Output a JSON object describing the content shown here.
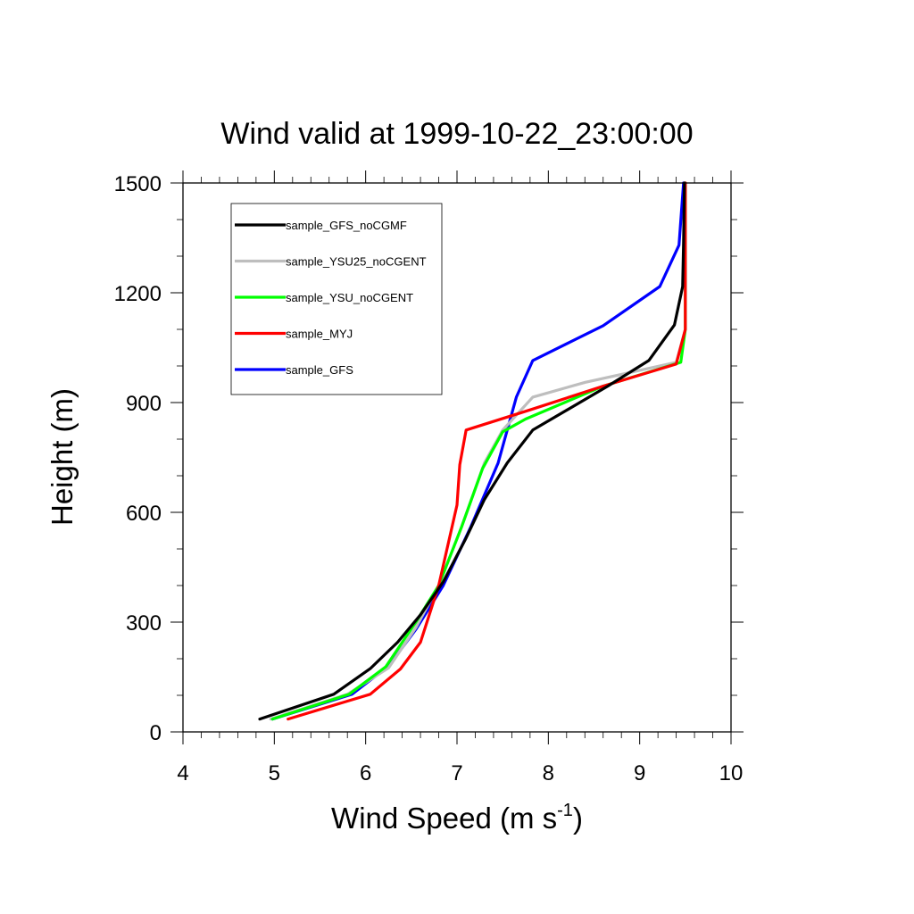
{
  "chart_data": {
    "type": "line",
    "title": "Wind valid at 1999-10-22_23:00:00",
    "xlabel": "Wind Speed (m s",
    "xlabel_superscript": "-1",
    "xlabel_suffix": ")",
    "ylabel": "Height (m)",
    "xlim": [
      4,
      10
    ],
    "ylim": [
      0,
      1500
    ],
    "x_ticks": [
      "4",
      "5",
      "6",
      "7",
      "8",
      "9",
      "10"
    ],
    "y_ticks": [
      "0",
      "300",
      "600",
      "900",
      "1200",
      "1500"
    ],
    "x_tick_values": [
      4,
      5,
      6,
      7,
      8,
      9,
      10
    ],
    "y_tick_values": [
      0,
      300,
      600,
      900,
      1200,
      1500
    ],
    "grid": false,
    "legend_position": "top-left",
    "series": [
      {
        "name": "sample_GFS_noCGMF",
        "color": "#000000",
        "points": [
          [
            4.84,
            35
          ],
          [
            5.65,
            103
          ],
          [
            6.05,
            173
          ],
          [
            6.35,
            245
          ],
          [
            6.6,
            320
          ],
          [
            6.85,
            410
          ],
          [
            7.1,
            530
          ],
          [
            7.3,
            635
          ],
          [
            7.55,
            735
          ],
          [
            7.83,
            825
          ],
          [
            8.65,
            945
          ],
          [
            9.1,
            1015
          ],
          [
            9.38,
            1112
          ],
          [
            9.47,
            1217
          ],
          [
            9.48,
            1335
          ],
          [
            9.49,
            1500
          ]
        ]
      },
      {
        "name": "sample_YSU25_noCGENT",
        "color": "#bebebe",
        "points": [
          [
            4.96,
            35
          ],
          [
            5.8,
            103
          ],
          [
            6.25,
            175
          ],
          [
            6.55,
            285
          ],
          [
            6.8,
            400
          ],
          [
            7.05,
            560
          ],
          [
            7.3,
            735
          ],
          [
            7.5,
            825
          ],
          [
            7.83,
            915
          ],
          [
            8.4,
            955
          ],
          [
            9.4,
            1010
          ],
          [
            9.5,
            1100
          ],
          [
            9.5,
            1200
          ],
          [
            9.5,
            1320
          ],
          [
            9.5,
            1500
          ]
        ]
      },
      {
        "name": "sample_YSU_noCGENT",
        "color": "#00ff00",
        "points": [
          [
            4.98,
            35
          ],
          [
            5.82,
            103
          ],
          [
            6.22,
            178
          ],
          [
            6.55,
            300
          ],
          [
            6.8,
            400
          ],
          [
            7.05,
            560
          ],
          [
            7.28,
            720
          ],
          [
            7.5,
            820
          ],
          [
            7.75,
            855
          ],
          [
            8.6,
            945
          ],
          [
            9.45,
            1010
          ],
          [
            9.5,
            1100
          ],
          [
            9.5,
            1200
          ],
          [
            9.5,
            1320
          ],
          [
            9.5,
            1500
          ]
        ]
      },
      {
        "name": "sample_MYJ",
        "color": "#ff0000",
        "points": [
          [
            5.15,
            35
          ],
          [
            6.05,
            103
          ],
          [
            6.38,
            172
          ],
          [
            6.6,
            245
          ],
          [
            6.8,
            400
          ],
          [
            7.0,
            620
          ],
          [
            7.03,
            730
          ],
          [
            7.1,
            825
          ],
          [
            7.8,
            880
          ],
          [
            8.6,
            945
          ],
          [
            9.4,
            1005
          ],
          [
            9.5,
            1100
          ],
          [
            9.5,
            1200
          ],
          [
            9.5,
            1320
          ],
          [
            9.5,
            1500
          ]
        ]
      },
      {
        "name": "sample_GFS",
        "color": "#0000ff",
        "points": [
          [
            4.98,
            35
          ],
          [
            5.85,
            103
          ],
          [
            6.25,
            180
          ],
          [
            6.55,
            280
          ],
          [
            6.85,
            400
          ],
          [
            7.15,
            560
          ],
          [
            7.45,
            735
          ],
          [
            7.65,
            915
          ],
          [
            7.83,
            1015
          ],
          [
            8.6,
            1110
          ],
          [
            9.22,
            1217
          ],
          [
            9.43,
            1330
          ],
          [
            9.48,
            1500
          ]
        ]
      }
    ]
  }
}
